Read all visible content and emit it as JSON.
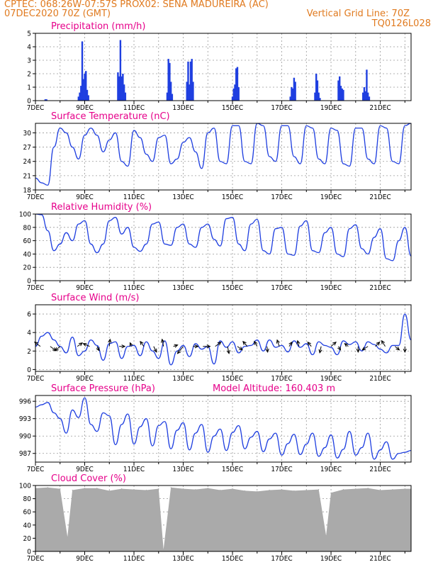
{
  "header": {
    "line1_left": "CPTEC:   068:26W-07:57S   PROX02: SENA MADUREIRA (AC)",
    "line2_left": "07DEC2020 70Z (GMT)",
    "line2_right": "Vertical Grid Line: 70Z",
    "line3_right": "TQ0126L028"
  },
  "colors": {
    "header": "#e07a1f",
    "title": "#e6008a",
    "line": "#1f3fe0",
    "bar": "#1f3fe0",
    "cloud": "#aaaaaa"
  },
  "x_axis": {
    "ticks": [
      "7DEC",
      "9DEC",
      "11DEC",
      "13DEC",
      "15DEC",
      "17DEC",
      "19DEC",
      "21DEC"
    ],
    "range_days": [
      0,
      15.25
    ]
  },
  "chart_data": [
    {
      "type": "bar",
      "title": "Precipitation (mm/h)",
      "ylim": [
        0,
        5
      ],
      "yticks": [
        0,
        1,
        2,
        3,
        4,
        5
      ],
      "x": [
        0.4,
        0.45,
        1.75,
        1.8,
        1.85,
        1.9,
        1.95,
        2.0,
        2.05,
        2.1,
        2.15,
        3.35,
        3.4,
        3.45,
        3.5,
        3.55,
        3.6,
        3.65,
        5.35,
        5.4,
        5.45,
        5.5,
        5.55,
        6.15,
        6.2,
        6.25,
        6.3,
        6.35,
        6.4,
        8.0,
        8.05,
        8.1,
        8.15,
        8.2,
        8.25,
        10.35,
        10.4,
        10.45,
        10.5,
        10.55,
        11.35,
        11.4,
        11.45,
        11.5,
        11.55,
        12.3,
        12.35,
        12.4,
        12.45,
        12.5,
        13.3,
        13.35,
        13.4,
        13.45,
        13.5,
        13.55
      ],
      "values": [
        0.1,
        0.1,
        0.3,
        0.6,
        1.1,
        4.4,
        1.6,
        2.0,
        2.2,
        0.8,
        0.4,
        2.1,
        1.8,
        4.5,
        1.8,
        2.0,
        1.2,
        0.6,
        0.6,
        3.1,
        2.8,
        1.4,
        0.5,
        1.4,
        2.9,
        1.2,
        2.9,
        3.1,
        1.4,
        0.3,
        0.9,
        1.2,
        2.4,
        2.5,
        1.0,
        0.3,
        1.0,
        0.9,
        1.7,
        1.4,
        0.6,
        2.0,
        1.5,
        0.6,
        0.2,
        1.5,
        1.8,
        1.1,
        0.9,
        0.8,
        0.6,
        1.0,
        0.7,
        2.3,
        0.6,
        0.3
      ]
    },
    {
      "type": "line",
      "title": "Surface Temperature (nC)",
      "ylim": [
        18,
        32
      ],
      "yticks": [
        18,
        21,
        24,
        27,
        30
      ],
      "x": [
        0,
        0.25,
        0.5,
        0.75,
        1,
        1.25,
        1.5,
        1.75,
        2,
        2.25,
        2.5,
        2.75,
        3,
        3.25,
        3.5,
        3.75,
        4,
        4.25,
        4.5,
        4.75,
        5,
        5.25,
        5.5,
        5.75,
        6,
        6.25,
        6.5,
        6.75,
        7,
        7.25,
        7.5,
        7.75,
        8,
        8.25,
        8.5,
        8.75,
        9,
        9.25,
        9.5,
        9.75,
        10,
        10.25,
        10.5,
        10.75,
        11,
        11.25,
        11.5,
        11.75,
        12,
        12.25,
        12.5,
        12.75,
        13,
        13.25,
        13.5,
        13.75,
        14,
        14.25,
        14.5,
        14.75,
        15,
        15.25
      ],
      "values": [
        20.5,
        19.5,
        19.0,
        27.0,
        31.0,
        30.0,
        27.0,
        24.5,
        29.5,
        31.0,
        29.5,
        26.0,
        28.5,
        30.0,
        24.0,
        23.0,
        30.5,
        29.0,
        25.5,
        24.0,
        29.0,
        29.5,
        23.5,
        24.5,
        28.0,
        29.0,
        26.0,
        22.5,
        30.0,
        31.0,
        24.0,
        23.5,
        31.5,
        31.5,
        24.0,
        23.5,
        32.0,
        31.5,
        25.0,
        24.0,
        31.5,
        31.5,
        25.0,
        23.5,
        31.5,
        31.0,
        24.5,
        23.5,
        31.0,
        30.5,
        23.5,
        23.0,
        31.0,
        31.0,
        24.5,
        23.5,
        31.5,
        31.0,
        24.0,
        23.5,
        31.5,
        32.0
      ]
    },
    {
      "type": "line",
      "title": "Relative Humidity (%)",
      "ylim": [
        0,
        100
      ],
      "yticks": [
        0,
        20,
        40,
        60,
        80,
        100
      ],
      "x": [
        0,
        0.25,
        0.5,
        0.75,
        1,
        1.25,
        1.5,
        1.75,
        2,
        2.25,
        2.5,
        2.75,
        3,
        3.25,
        3.5,
        3.75,
        4,
        4.25,
        4.5,
        4.75,
        5,
        5.25,
        5.5,
        5.75,
        6,
        6.25,
        6.5,
        6.75,
        7,
        7.25,
        7.5,
        7.75,
        8,
        8.25,
        8.5,
        8.75,
        9,
        9.25,
        9.5,
        9.75,
        10,
        10.25,
        10.5,
        10.75,
        11,
        11.25,
        11.5,
        11.75,
        12,
        12.25,
        12.5,
        12.75,
        13,
        13.25,
        13.5,
        13.75,
        14,
        14.25,
        14.5,
        14.75,
        15,
        15.25
      ],
      "values": [
        100,
        99,
        75,
        45,
        55,
        72,
        60,
        85,
        90,
        55,
        42,
        55,
        90,
        95,
        70,
        80,
        50,
        44,
        55,
        85,
        88,
        55,
        53,
        80,
        85,
        55,
        50,
        80,
        85,
        62,
        52,
        93,
        95,
        55,
        45,
        85,
        92,
        45,
        40,
        78,
        80,
        40,
        38,
        82,
        90,
        45,
        42,
        72,
        80,
        40,
        36,
        78,
        84,
        48,
        40,
        65,
        78,
        33,
        30,
        60,
        80,
        37
      ]
    },
    {
      "type": "line",
      "title": "Surface Wind (m/s)",
      "ylim": [
        -0.2,
        7
      ],
      "yticks": [
        0,
        2,
        4,
        6
      ],
      "x": [
        0,
        0.25,
        0.5,
        0.75,
        1,
        1.25,
        1.5,
        1.75,
        2,
        2.25,
        2.5,
        2.75,
        3,
        3.25,
        3.5,
        3.75,
        4,
        4.25,
        4.5,
        4.75,
        5,
        5.25,
        5.5,
        5.75,
        6,
        6.25,
        6.5,
        6.75,
        7,
        7.25,
        7.5,
        7.75,
        8,
        8.25,
        8.5,
        8.75,
        9,
        9.25,
        9.5,
        9.75,
        10,
        10.25,
        10.5,
        10.75,
        11,
        11.25,
        11.5,
        11.75,
        12,
        12.25,
        12.5,
        12.75,
        13,
        13.25,
        13.5,
        13.75,
        14,
        14.25,
        14.5,
        14.75,
        15,
        15.25
      ],
      "values": [
        2.5,
        3.6,
        4.0,
        3.2,
        2.5,
        1.8,
        3.5,
        1.5,
        2.0,
        3.2,
        2.6,
        1.0,
        2.8,
        3.0,
        1.2,
        2.5,
        2.6,
        1.5,
        3.0,
        2.0,
        1.2,
        3.1,
        0.5,
        2.0,
        2.6,
        1.4,
        2.8,
        2.2,
        2.5,
        0.6,
        3.1,
        2.4,
        3.0,
        1.8,
        2.5,
        2.6,
        3.2,
        2.0,
        3.2,
        2.4,
        2.6,
        1.9,
        3.1,
        2.4,
        2.8,
        1.6,
        3.0,
        2.6,
        2.4,
        1.6,
        3.1,
        2.7,
        3.0,
        2.0,
        3.0,
        2.7,
        2.2,
        1.8,
        2.6,
        2.6,
        6.0,
        3.2
      ],
      "vectors_x": [
        0.2,
        0.6,
        1.0,
        1.7,
        2.2,
        2.5,
        3.0,
        3.4,
        3.9,
        4.4,
        4.8,
        5.2,
        5.6,
        6.0,
        6.4,
        6.8,
        7.3,
        7.8,
        8.2,
        8.6,
        9.0,
        9.4,
        9.9,
        10.3,
        10.7,
        11.2,
        11.6,
        12.0,
        12.3,
        12.7,
        13.1,
        13.5,
        13.8,
        14.2,
        14.6,
        15.0
      ],
      "vectors_u": [
        -0.8,
        0.8,
        -0.7,
        0.7,
        -0.9,
        0.3,
        0.1,
        0.8,
        -0.2,
        -0.5,
        0.4,
        -0.2,
        0.6,
        -0.8,
        0.7,
        1.0,
        0.8,
        0.2,
        0.7,
        -0.6,
        -0.4,
        0.1,
        -0.3,
        0.4,
        -0.2,
        -0.5,
        -0.2,
        0.7,
        0.3,
        -0.5,
        0.0,
        -0.8,
        0.6,
        -0.5,
        0.6,
        0.0
      ],
      "vectors_v": [
        0.6,
        -0.6,
        -0.6,
        0.5,
        0.4,
        -0.6,
        1.0,
        0.0,
        0.5,
        0.7,
        -0.8,
        1.0,
        0.2,
        -1.0,
        0.0,
        0.0,
        0.6,
        -1.0,
        -0.5,
        0.7,
        0.7,
        -0.8,
        0.9,
        0.6,
        0.8,
        0.6,
        -0.9,
        0.6,
        -0.5,
        0.4,
        -0.8,
        -0.5,
        0.6,
        0.8,
        -0.5,
        -0.8
      ]
    },
    {
      "type": "line",
      "title": "Surface Pressure (hPa)",
      "subtitle": "Model Altitude: 160.403 m",
      "ylim": [
        985.5,
        997
      ],
      "yticks": [
        987,
        990,
        993,
        996
      ],
      "x": [
        0,
        0.25,
        0.5,
        0.75,
        1,
        1.25,
        1.5,
        1.75,
        2,
        2.25,
        2.5,
        2.75,
        3,
        3.25,
        3.5,
        3.75,
        4,
        4.25,
        4.5,
        4.75,
        5,
        5.25,
        5.5,
        5.75,
        6,
        6.25,
        6.5,
        6.75,
        7,
        7.25,
        7.5,
        7.75,
        8,
        8.25,
        8.5,
        8.75,
        9,
        9.25,
        9.5,
        9.75,
        10,
        10.25,
        10.5,
        10.75,
        11,
        11.25,
        11.5,
        11.75,
        12,
        12.25,
        12.5,
        12.75,
        13,
        13.25,
        13.5,
        13.75,
        14,
        14.25,
        14.5,
        14.75,
        15,
        15.25
      ],
      "values": [
        995,
        995.4,
        995.8,
        994.0,
        993.0,
        990.5,
        994.5,
        993.2,
        996.6,
        992.0,
        990.8,
        994.0,
        993.5,
        988.5,
        992.0,
        993.8,
        988.6,
        991.6,
        993.0,
        988.3,
        991.8,
        992.5,
        987.8,
        991.0,
        992.3,
        987.6,
        990.5,
        992.0,
        987.2,
        990.0,
        991.2,
        987.5,
        990.6,
        991.8,
        987.8,
        989.8,
        990.8,
        987.3,
        989.5,
        990.5,
        986.7,
        988.7,
        990.3,
        986.8,
        988.6,
        990.5,
        986.5,
        988.0,
        990.2,
        986.2,
        987.7,
        990.8,
        986.7,
        988.0,
        990.5,
        986.0,
        987.6,
        989.0,
        986.0,
        987.0,
        987.2,
        987.5
      ]
    },
    {
      "type": "bar",
      "title": "Cloud Cover (%)",
      "ylim": [
        0,
        100
      ],
      "yticks": [
        0,
        20,
        40,
        60,
        80,
        100
      ],
      "x": [
        0,
        0.5,
        1,
        1.3,
        1.5,
        2,
        2.5,
        3,
        3.5,
        4,
        4.5,
        5,
        5.2,
        5.5,
        6,
        6.5,
        7,
        7.5,
        8,
        8.5,
        9,
        9.5,
        10,
        10.5,
        11,
        11.5,
        11.8,
        12,
        12.5,
        13,
        13.5,
        14,
        14.5,
        15
      ],
      "values": [
        96,
        97,
        95,
        22,
        93,
        96,
        96,
        92,
        95,
        94,
        93,
        95,
        3,
        97,
        95,
        94,
        96,
        93,
        95,
        92,
        91,
        93,
        94,
        92,
        93,
        94,
        24,
        89,
        94,
        95,
        96,
        93,
        94,
        95
      ]
    }
  ]
}
